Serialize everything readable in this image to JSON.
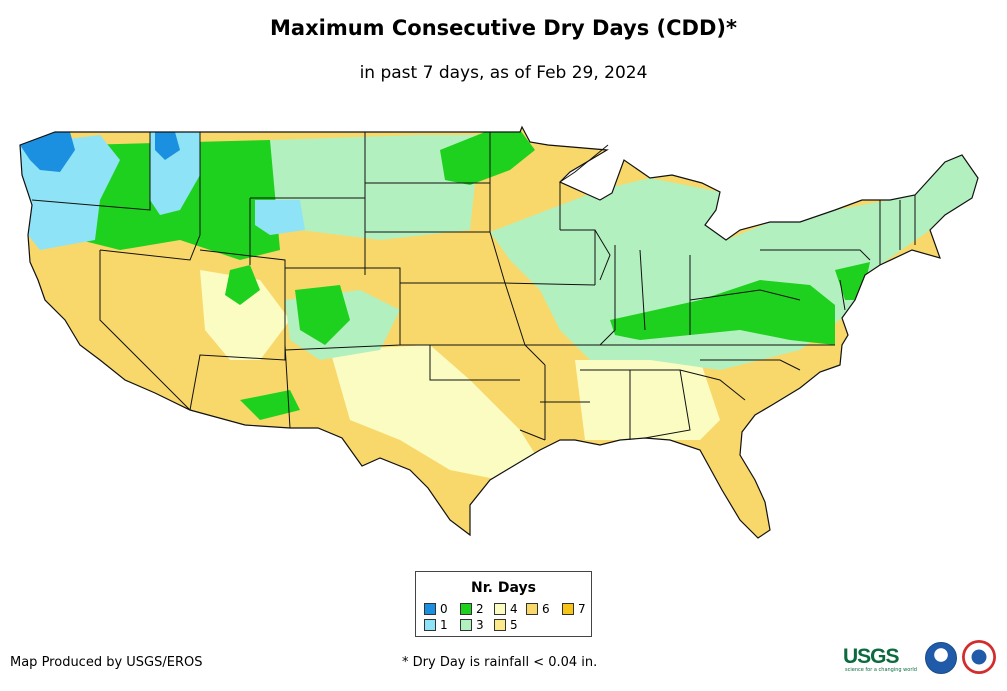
{
  "title": "Maximum Consecutive Dry Days (CDD)*",
  "subtitle": "in past 7 days, as of Feb 29, 2024",
  "legend": {
    "title": "Nr. Days",
    "items": [
      {
        "label": "0",
        "color": "#1b8fe0"
      },
      {
        "label": "1",
        "color": "#8fe3f7"
      },
      {
        "label": "2",
        "color": "#1ed11e"
      },
      {
        "label": "3",
        "color": "#b3f0bf"
      },
      {
        "label": "4",
        "color": "#fbfcc2"
      },
      {
        "label": "5",
        "color": "#fbe98c"
      },
      {
        "label": "6",
        "color": "#f8d86a"
      },
      {
        "label": "7",
        "color": "#f7c51a"
      }
    ]
  },
  "credit": "Map Produced by USGS/EROS",
  "footnote": "* Dry Day is rainfall < 0.04 in.",
  "logos": {
    "usgs": "USGS",
    "usgs_tagline": "science for a changing world",
    "noaa": "noaa",
    "nws": "national-weather-service-logo"
  }
}
